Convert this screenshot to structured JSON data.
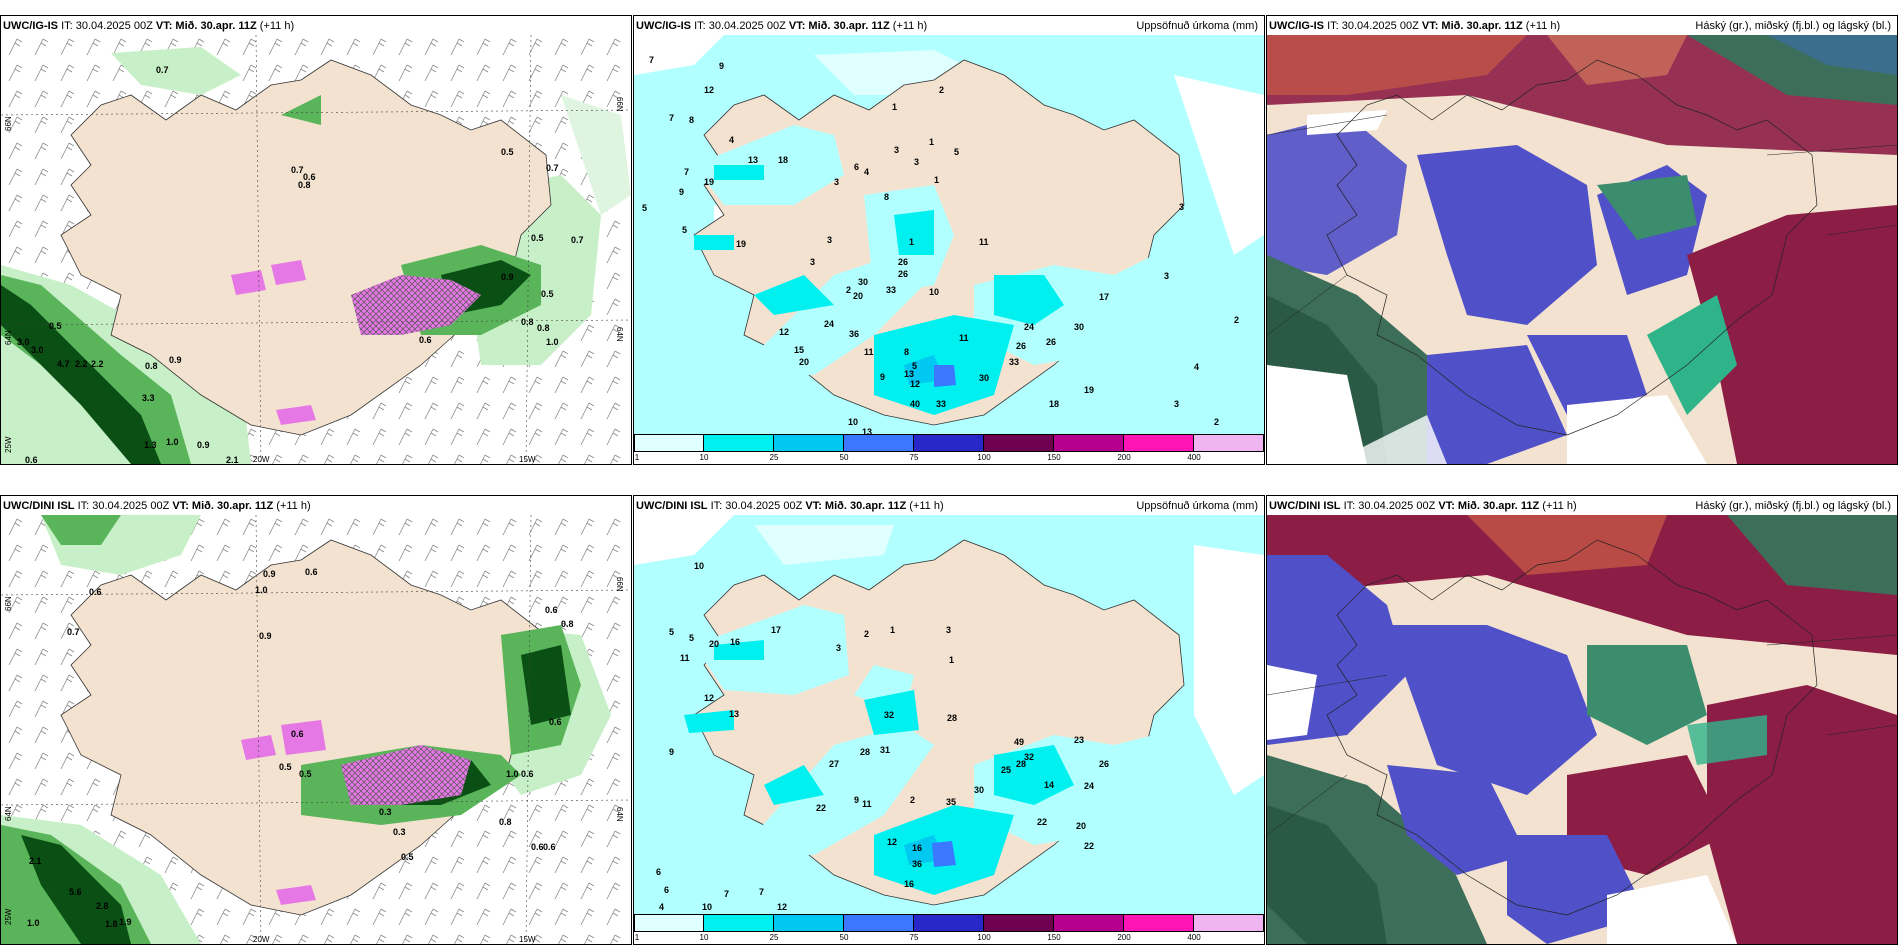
{
  "panels": [
    {
      "model": "UWC/IG-IS",
      "it": "IT: 30.04.2025 00Z",
      "vt": "VT: Mið. 30.apr. 11Z",
      "lead": "(+11 h)",
      "field": ""
    },
    {
      "model": "UWC/IG-IS",
      "it": "IT: 30.04.2025 00Z",
      "vt": "VT: Mið. 30.apr. 11Z",
      "lead": "(+11 h)",
      "field": "Uppsöfnuð úrkoma (mm)"
    },
    {
      "model": "UWC/IG-IS",
      "it": "IT: 30.04.2025 00Z",
      "vt": "VT: Mið. 30.apr. 11Z",
      "lead": "(+11 h)",
      "field": "Háský (gr.), miðský (fj.bl.) og lágský (bl.)"
    },
    {
      "model": "UWC/DINI ISL",
      "it": "IT: 30.04.2025 00Z",
      "vt": "VT: Mið. 30.apr. 11Z",
      "lead": "(+11 h)",
      "field": ""
    },
    {
      "model": "UWC/DINI ISL",
      "it": "IT: 30.04.2025 00Z",
      "vt": "VT: Mið. 30.apr. 11Z",
      "lead": "(+11 h)",
      "field": "Uppsöfnuð úrkoma (mm)"
    },
    {
      "model": "UWC/DINI ISL",
      "it": "IT: 30.04.2025 00Z",
      "vt": "VT: Mið. 30.apr. 11Z",
      "lead": "(+11 h)",
      "field": "Háský (gr.), miðský (fj.bl.) og lágský (bl.)"
    }
  ],
  "axis_labels": {
    "lat66": "66N",
    "lat64": "64N",
    "lon25": "25W",
    "lon20": "20W",
    "lon15": "15W"
  },
  "colorbar": {
    "ticks": [
      "1",
      "10",
      "25",
      "50",
      "75",
      "100",
      "150",
      "200",
      "400"
    ],
    "colors": [
      "#e0ffff",
      "#00f0f0",
      "#00c8f0",
      "#3c78ff",
      "#2828c8",
      "#6e0050",
      "#b4008c",
      "#ff14b4",
      "#f0b4f0"
    ]
  },
  "colors": {
    "land": "#f2e2cf",
    "rain_light": "#b2ffff",
    "snow_light": "#c8f0c8",
    "snow_mid": "#5ab45a",
    "snow_dark": "#0a5014",
    "pink": "#e678e6",
    "cloud_high": "#3c6e5a",
    "cloud_mid": "#5050c8",
    "cloud_low": "#8c1e46"
  },
  "panel1_values": [
    "0.7",
    "0.5",
    "0.7",
    "0.7",
    "0.6",
    "0.8",
    "0.5",
    "0.7",
    "0.5",
    "3.0",
    "3.0",
    "4.7",
    "2.2",
    "2.2",
    "0.8",
    "0.9",
    "3.3",
    "1.3",
    "1.0",
    "0.9",
    "0.6",
    "2.1",
    "0.6",
    "1.0",
    "0.8",
    "0.8",
    "0.9",
    "0.5"
  ],
  "panel2_values": [
    "7",
    "9",
    "12",
    "7",
    "8",
    "4",
    "7",
    "19",
    "13",
    "18",
    "9",
    "5",
    "5",
    "19",
    "3",
    "1",
    "3",
    "3",
    "2",
    "1",
    "5",
    "1",
    "6",
    "4",
    "3",
    "8",
    "3",
    "30",
    "26",
    "20",
    "33",
    "26",
    "10",
    "2",
    "1",
    "11",
    "12",
    "15",
    "24",
    "36",
    "20",
    "11",
    "8",
    "13",
    "9",
    "12",
    "5",
    "40",
    "33",
    "30",
    "10",
    "13",
    "11",
    "26",
    "33",
    "24",
    "26",
    "30",
    "17",
    "18",
    "19",
    "3",
    "3",
    "2",
    "3",
    "4",
    "2"
  ],
  "panel4_values": [
    "0.9",
    "0.6",
    "1.0",
    "0.6",
    "0.7",
    "0.9",
    "0.6",
    "0.5",
    "0.5",
    "0.6",
    "0.8",
    "2.1",
    "5.6",
    "2.8",
    "1.8",
    "1.9",
    "1.0",
    "0.6",
    "0.3",
    "0.5",
    "0.8",
    "0.6",
    "0.6",
    "1.0",
    "0.6",
    "0.3"
  ],
  "panel5_values": [
    "10",
    "9",
    "5",
    "5",
    "2",
    "1",
    "3",
    "1",
    "16",
    "17",
    "20",
    "11",
    "3",
    "11",
    "9",
    "2",
    "12",
    "32",
    "28",
    "13",
    "27",
    "28",
    "31",
    "22",
    "12",
    "16",
    "36",
    "35",
    "30",
    "25",
    "32",
    "22",
    "20",
    "49",
    "28",
    "23",
    "26",
    "24",
    "22",
    "14",
    "16",
    "7",
    "7",
    "6",
    "6",
    "4",
    "10",
    "12"
  ]
}
